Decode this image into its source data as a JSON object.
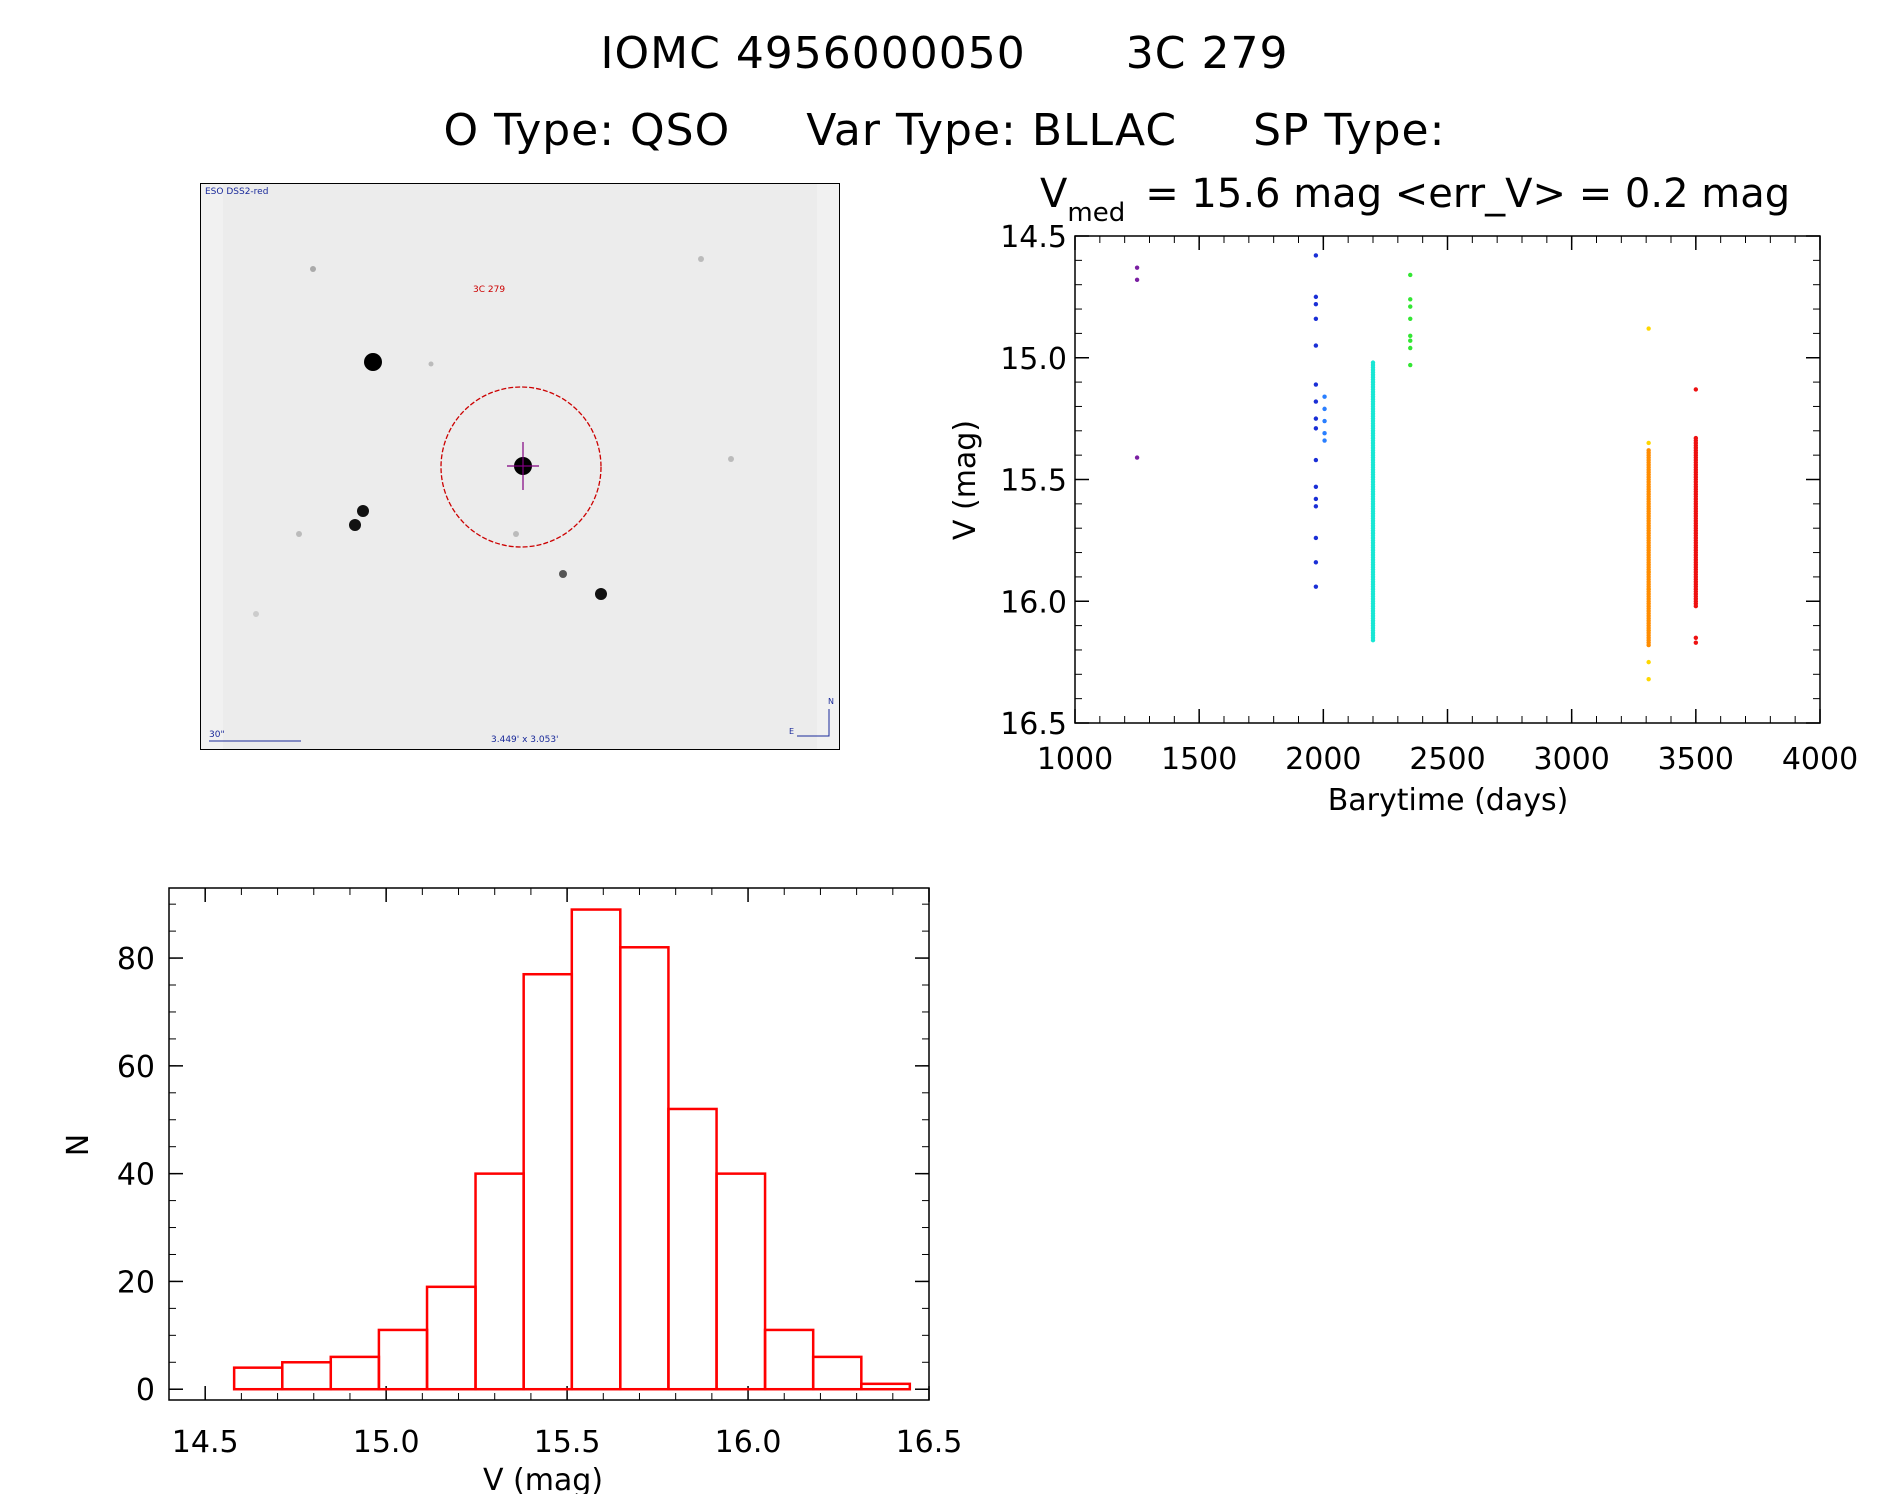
{
  "header": {
    "line1_id": "IOMC 4956000050",
    "line1_name": "3C 279",
    "otype_label": "O Type: QSO",
    "vartype_label": "Var Type: BLLAC",
    "sptype_label": "SP Type:"
  },
  "image_panel": {
    "survey_label": "ESO DSS2-red",
    "object_label": "3C 279",
    "scale_label": "30\"",
    "fov_label": "3.449' x 3.053'",
    "compass_n": "N",
    "compass_e": "E"
  },
  "colors": {
    "histogram": "#ff0000",
    "circle": "#cc0000",
    "crosshair": "#800080"
  },
  "chart_data": [
    {
      "type": "scatter",
      "title_prefix": "V",
      "title_subscript": "med",
      "title_rest": "= 15.6 mag <err_V> = 0.2 mag",
      "xlabel": "Barytime (days)",
      "ylabel": "V (mag)",
      "xlim": [
        1000,
        4000
      ],
      "ylim": [
        16.5,
        14.5
      ],
      "xticks": [
        "1000",
        "1500",
        "2000",
        "2500",
        "3000",
        "3500",
        "4000"
      ],
      "yticks": [
        "14.5",
        "15.0",
        "15.5",
        "16.0",
        "16.5"
      ],
      "series": [
        {
          "name": "epoch1",
          "color": "#7a1fa2",
          "x": [
            1250,
            1250,
            1250
          ],
          "y": [
            14.63,
            14.68,
            15.41
          ]
        },
        {
          "name": "epoch2",
          "color": "#1a2fd6",
          "x": [
            1970,
            1970,
            1970,
            1970,
            1970,
            1970,
            1970,
            1970,
            1970,
            1970,
            1970,
            1970,
            1970,
            1970,
            1970,
            1970
          ],
          "y": [
            14.58,
            14.75,
            14.78,
            14.84,
            14.95,
            15.11,
            15.18,
            15.25,
            15.29,
            15.42,
            15.53,
            15.58,
            15.61,
            15.74,
            15.84,
            15.94
          ]
        },
        {
          "name": "epoch2b",
          "color": "#2a7fff",
          "x": [
            2005,
            2005,
            2005,
            2005,
            2005
          ],
          "y": [
            15.16,
            15.21,
            15.26,
            15.31,
            15.34
          ]
        },
        {
          "name": "epoch3",
          "color": "#19e6d4",
          "min_x": 2200,
          "y_min": 15.02,
          "y_max": 16.16
        },
        {
          "name": "epoch4",
          "color": "#33e633",
          "x": [
            2350,
            2350,
            2350,
            2350,
            2350,
            2350,
            2350,
            2350
          ],
          "y": [
            14.66,
            14.76,
            14.79,
            14.84,
            14.91,
            14.93,
            14.96,
            15.03
          ]
        },
        {
          "name": "epoch5y",
          "color": "#ffd700",
          "x": [
            3310,
            3310,
            3310,
            3310,
            3310,
            3310,
            3310
          ],
          "y": [
            14.88,
            15.35,
            15.88,
            15.95,
            16.12,
            16.25,
            16.32
          ]
        },
        {
          "name": "epoch5o",
          "color": "#ff8c00",
          "min_x": 3310,
          "y_min": 15.38,
          "y_max": 16.18
        },
        {
          "name": "epoch6",
          "color": "#ee1111",
          "min_x": 3500,
          "y_min": 15.33,
          "y_max": 16.02,
          "extra_y": [
            15.13,
            16.15,
            16.17
          ]
        }
      ]
    },
    {
      "type": "bar",
      "subtype": "histogram",
      "xlabel": "V (mag)",
      "ylabel": "N",
      "xlim": [
        14.4,
        16.5
      ],
      "ylim": [
        -2,
        93
      ],
      "xticks": [
        "14.5",
        "15.0",
        "15.5",
        "16.0",
        "16.5"
      ],
      "yticks": [
        "0",
        "20",
        "40",
        "60",
        "80"
      ],
      "bin_edges": [
        14.58,
        14.713,
        14.847,
        14.98,
        15.113,
        15.247,
        15.38,
        15.513,
        15.647,
        15.78,
        15.913,
        16.047,
        16.18,
        16.313,
        16.447
      ],
      "values": [
        4,
        5,
        6,
        11,
        19,
        40,
        77,
        89,
        82,
        52,
        40,
        11,
        6,
        1
      ]
    }
  ]
}
